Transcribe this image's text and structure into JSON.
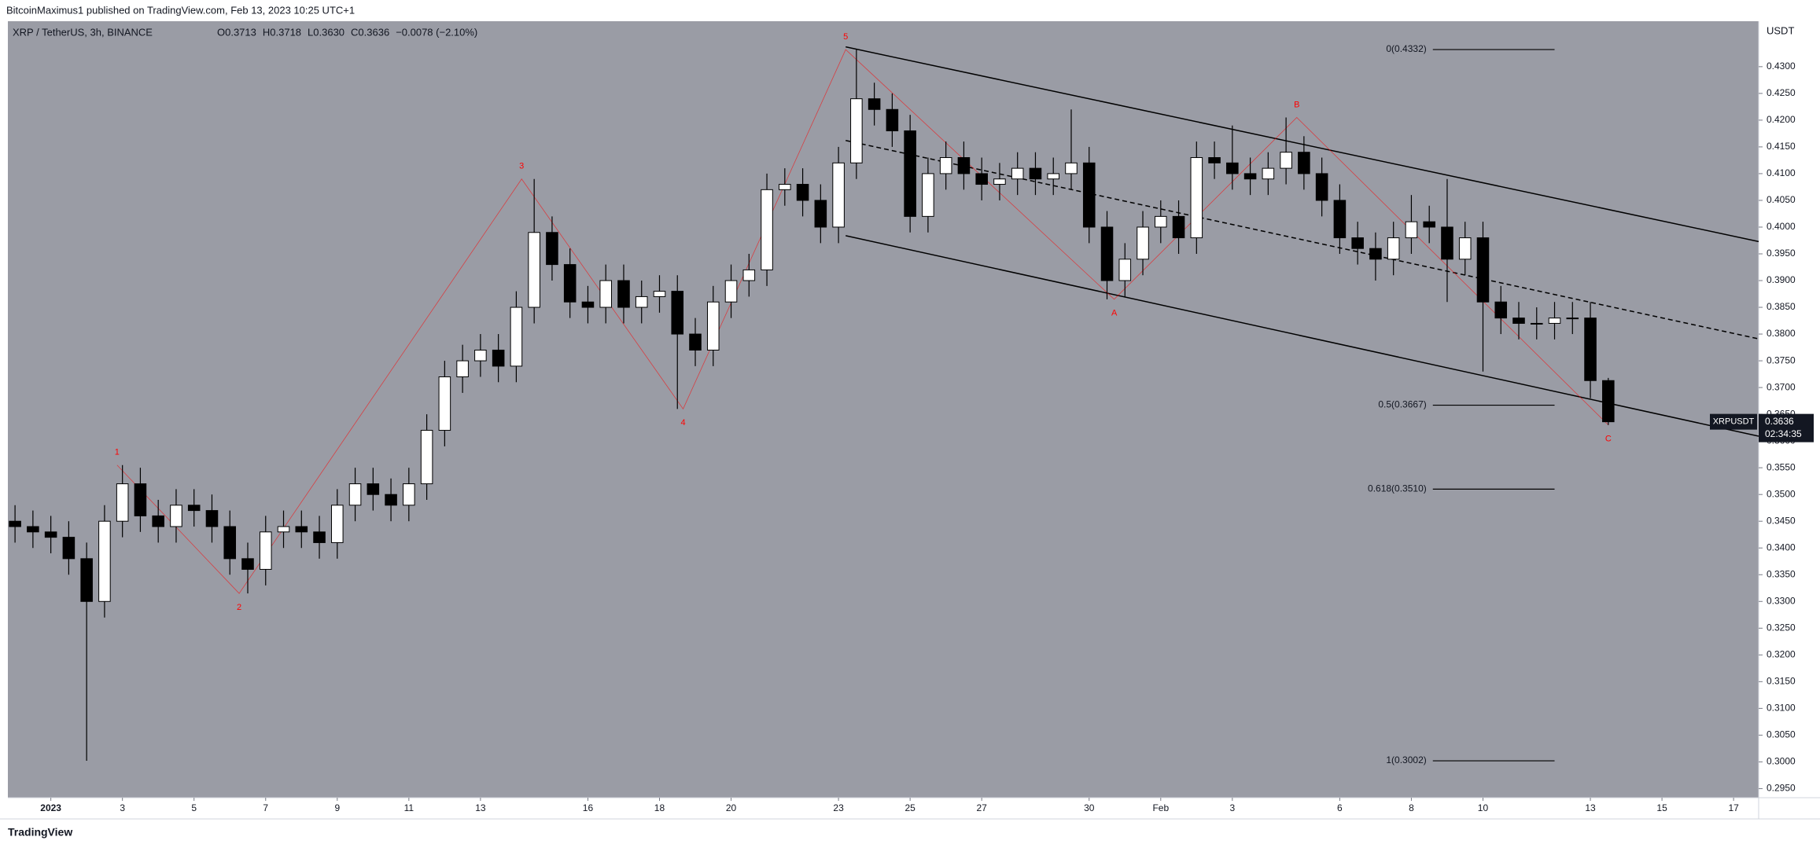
{
  "header": {
    "text": "BitcoinMaximus1 published on TradingView.com, Feb 13, 2023 10:25 UTC+1"
  },
  "footer": {
    "logo": "TradingView"
  },
  "chart_data": {
    "type": "candlestick",
    "symbol": "XRP / TetherUS, 3h, BINANCE",
    "info": [
      "O0.3713",
      "H0.3718",
      "L0.3630",
      "C0.3636",
      "−0.0078 (−2.10%)"
    ],
    "axis_unit": "USDT",
    "background": "#9a9ca5",
    "up_color": "#ffffff",
    "down_color": "#000000",
    "wick_color": "#000000",
    "grid": false,
    "xlim": [
      -0.2,
      48.7
    ],
    "ylim": [
      0.2933,
      0.4385
    ],
    "xticks": [
      {
        "value": 1,
        "label": "2023"
      },
      3,
      5,
      7,
      9,
      11,
      13,
      16,
      18,
      20,
      23,
      25,
      27,
      30,
      {
        "value": 32,
        "label": "Feb"
      },
      {
        "value": 34,
        "label": "3"
      },
      {
        "value": 37,
        "label": "6"
      },
      {
        "value": 39,
        "label": "8"
      },
      {
        "value": 41,
        "label": "10"
      },
      {
        "value": 44,
        "label": "13"
      },
      {
        "value": 46,
        "label": "15"
      },
      {
        "value": 48,
        "label": "17"
      }
    ],
    "yticks": [
      {
        "value": 0.295,
        "label": "0.2950"
      },
      {
        "value": 0.3,
        "label": "0.3000"
      },
      {
        "value": 0.305,
        "label": "0.3050"
      },
      {
        "value": 0.31,
        "label": "0.3100"
      },
      {
        "value": 0.315,
        "label": "0.3150"
      },
      {
        "value": 0.32,
        "label": "0.3200"
      },
      {
        "value": 0.325,
        "label": "0.3250"
      },
      {
        "value": 0.33,
        "label": "0.3300"
      },
      {
        "value": 0.335,
        "label": "0.3350"
      },
      {
        "value": 0.34,
        "label": "0.3400"
      },
      {
        "value": 0.345,
        "label": "0.3450"
      },
      {
        "value": 0.35,
        "label": "0.3500"
      },
      {
        "value": 0.355,
        "label": "0.3550"
      },
      {
        "value": 0.36,
        "label": "0.3600"
      },
      {
        "value": 0.365,
        "label": "0.3650"
      },
      {
        "value": 0.37,
        "label": "0.3700"
      },
      {
        "value": 0.375,
        "label": "0.3750"
      },
      {
        "value": 0.38,
        "label": "0.3800"
      },
      {
        "value": 0.385,
        "label": "0.3850"
      },
      {
        "value": 0.39,
        "label": "0.3900"
      },
      {
        "value": 0.395,
        "label": "0.3950"
      },
      {
        "value": 0.4,
        "label": "0.4000"
      },
      {
        "value": 0.405,
        "label": "0.4050"
      },
      {
        "value": 0.41,
        "label": "0.4100"
      },
      {
        "value": 0.415,
        "label": "0.4150"
      },
      {
        "value": 0.42,
        "label": "0.4200"
      },
      {
        "value": 0.425,
        "label": "0.4250"
      },
      {
        "value": 0.43,
        "label": "0.4300"
      }
    ],
    "x": [
      0,
      0.5,
      1,
      1.5,
      2,
      2.5,
      3,
      3.5,
      4,
      4.5,
      5,
      5.5,
      6,
      6.5,
      7,
      7.5,
      8,
      8.5,
      9,
      9.5,
      10,
      10.5,
      11,
      11.5,
      12,
      12.5,
      13,
      13.5,
      14,
      14.5,
      15,
      15.5,
      16,
      16.5,
      17,
      17.5,
      18,
      18.5,
      19,
      19.5,
      20,
      20.5,
      21,
      21.5,
      22,
      22.5,
      23,
      23.5,
      24,
      24.5,
      25,
      25.5,
      26,
      26.5,
      27,
      27.5,
      28,
      28.5,
      29,
      29.5,
      30,
      30.5,
      31,
      31.5,
      32,
      32.5,
      33,
      33.5,
      34,
      34.5,
      35,
      35.5,
      36,
      36.5,
      37,
      37.5,
      38,
      38.5,
      39,
      39.5,
      40,
      40.5,
      41,
      41.5,
      42,
      42.5,
      43,
      43.5,
      44,
      44.5
    ],
    "open": [
      0.345,
      0.344,
      0.343,
      0.342,
      0.338,
      0.33,
      0.345,
      0.352,
      0.346,
      0.344,
      0.348,
      0.347,
      0.344,
      0.338,
      0.336,
      0.343,
      0.344,
      0.343,
      0.341,
      0.348,
      0.352,
      0.35,
      0.348,
      0.352,
      0.362,
      0.372,
      0.375,
      0.377,
      0.374,
      0.385,
      0.399,
      0.393,
      0.386,
      0.385,
      0.39,
      0.385,
      0.387,
      0.388,
      0.38,
      0.377,
      0.386,
      0.39,
      0.392,
      0.407,
      0.408,
      0.405,
      0.4,
      0.412,
      0.424,
      0.422,
      0.418,
      0.402,
      0.41,
      0.413,
      0.41,
      0.408,
      0.409,
      0.411,
      0.409,
      0.41,
      0.412,
      0.4,
      0.39,
      0.394,
      0.4,
      0.402,
      0.398,
      0.413,
      0.412,
      0.41,
      0.409,
      0.411,
      0.414,
      0.41,
      0.405,
      0.398,
      0.396,
      0.394,
      0.398,
      0.401,
      0.4,
      0.394,
      0.398,
      0.386,
      0.383,
      0.382,
      0.382,
      0.383,
      0.383,
      0.3713
    ],
    "high": [
      0.348,
      0.347,
      0.346,
      0.345,
      0.341,
      0.348,
      0.3555,
      0.355,
      0.349,
      0.351,
      0.351,
      0.35,
      0.347,
      0.341,
      0.346,
      0.347,
      0.347,
      0.346,
      0.351,
      0.355,
      0.355,
      0.353,
      0.355,
      0.365,
      0.375,
      0.378,
      0.38,
      0.38,
      0.388,
      0.409,
      0.402,
      0.396,
      0.389,
      0.393,
      0.393,
      0.39,
      0.391,
      0.391,
      0.383,
      0.389,
      0.393,
      0.395,
      0.41,
      0.411,
      0.411,
      0.408,
      0.415,
      0.4332,
      0.427,
      0.425,
      0.421,
      0.413,
      0.416,
      0.416,
      0.413,
      0.412,
      0.414,
      0.414,
      0.413,
      0.422,
      0.415,
      0.403,
      0.397,
      0.403,
      0.405,
      0.405,
      0.416,
      0.416,
      0.419,
      0.413,
      0.414,
      0.4205,
      0.417,
      0.413,
      0.408,
      0.401,
      0.399,
      0.401,
      0.406,
      0.404,
      0.409,
      0.401,
      0.401,
      0.389,
      0.386,
      0.385,
      0.386,
      0.386,
      0.386,
      0.3718
    ],
    "low": [
      0.341,
      0.34,
      0.339,
      0.335,
      0.3002,
      0.327,
      0.342,
      0.343,
      0.341,
      0.341,
      0.344,
      0.341,
      0.335,
      0.3315,
      0.333,
      0.34,
      0.34,
      0.338,
      0.338,
      0.345,
      0.347,
      0.345,
      0.345,
      0.349,
      0.359,
      0.369,
      0.372,
      0.371,
      0.371,
      0.382,
      0.39,
      0.383,
      0.382,
      0.382,
      0.382,
      0.382,
      0.384,
      0.366,
      0.374,
      0.374,
      0.383,
      0.387,
      0.389,
      0.404,
      0.402,
      0.397,
      0.397,
      0.409,
      0.419,
      0.415,
      0.399,
      0.399,
      0.407,
      0.407,
      0.405,
      0.405,
      0.406,
      0.406,
      0.406,
      0.407,
      0.397,
      0.3865,
      0.387,
      0.391,
      0.397,
      0.395,
      0.395,
      0.409,
      0.407,
      0.406,
      0.406,
      0.408,
      0.407,
      0.402,
      0.395,
      0.393,
      0.39,
      0.391,
      0.395,
      0.397,
      0.386,
      0.391,
      0.373,
      0.38,
      0.379,
      0.379,
      0.379,
      0.38,
      0.368,
      0.363
    ],
    "close": [
      0.344,
      0.343,
      0.342,
      0.338,
      0.33,
      0.345,
      0.352,
      0.346,
      0.344,
      0.348,
      0.347,
      0.344,
      0.338,
      0.336,
      0.343,
      0.344,
      0.343,
      0.341,
      0.348,
      0.352,
      0.35,
      0.348,
      0.352,
      0.362,
      0.372,
      0.375,
      0.377,
      0.374,
      0.385,
      0.399,
      0.393,
      0.386,
      0.385,
      0.39,
      0.385,
      0.387,
      0.388,
      0.38,
      0.377,
      0.386,
      0.39,
      0.392,
      0.407,
      0.408,
      0.405,
      0.4,
      0.412,
      0.424,
      0.422,
      0.418,
      0.402,
      0.41,
      0.413,
      0.41,
      0.408,
      0.409,
      0.411,
      0.409,
      0.41,
      0.412,
      0.4,
      0.39,
      0.394,
      0.4,
      0.402,
      0.398,
      0.413,
      0.412,
      0.41,
      0.409,
      0.411,
      0.414,
      0.41,
      0.405,
      0.398,
      0.396,
      0.394,
      0.398,
      0.401,
      0.4,
      0.394,
      0.398,
      0.386,
      0.383,
      0.382,
      0.382,
      0.383,
      0.383,
      0.3713,
      0.3636
    ],
    "waves": {
      "color": "#ff0000",
      "points": [
        {
          "label": "1",
          "x": 2.85,
          "y": 0.3555
        },
        {
          "label": "2",
          "x": 6.26,
          "y": 0.3315
        },
        {
          "label": "3",
          "x": 14.15,
          "y": 0.409
        },
        {
          "label": "4",
          "x": 18.66,
          "y": 0.366
        },
        {
          "label": "5",
          "x": 23.2,
          "y": 0.4332
        },
        {
          "label": "A",
          "x": 30.7,
          "y": 0.3865
        },
        {
          "label": "B",
          "x": 35.8,
          "y": 0.4205
        },
        {
          "label": "C",
          "x": 44.5,
          "y": 0.363
        }
      ]
    },
    "channel": {
      "color": "#000000",
      "upper": [
        [
          23.2,
          0.4337
        ],
        [
          48.7,
          0.3973
        ]
      ],
      "middle": [
        [
          23.2,
          0.4162
        ],
        [
          48.7,
          0.3791
        ]
      ],
      "lower": [
        [
          23.2,
          0.3984
        ],
        [
          48.7,
          0.3609
        ]
      ]
    },
    "fib_x": [
      39.6,
      43.0
    ],
    "fib_levels": [
      {
        "value": 0.4332,
        "label": "0(0.4332)"
      },
      {
        "value": 0.3667,
        "label": "0.5(0.3667)"
      },
      {
        "value": 0.351,
        "label": "0.618(0.3510)"
      },
      {
        "value": 0.3002,
        "label": "1(0.3002)"
      }
    ],
    "price_tag": {
      "symbol": "XRPUSDT",
      "value": {
        "value": 0.3636,
        "label": "0.3636"
      },
      "countdown": "02:34:35"
    }
  }
}
